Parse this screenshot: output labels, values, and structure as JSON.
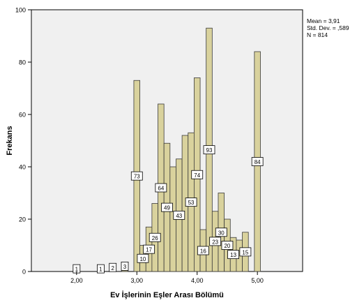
{
  "chart_data": {
    "type": "bar",
    "title": "",
    "xlabel": "Ev İşlerinin Eşler Arası Bölümü",
    "ylabel": "Frekans",
    "xlim": [
      1.25,
      5.75
    ],
    "ylim": [
      0,
      100
    ],
    "x_ticks": [
      2.0,
      3.0,
      4.0,
      5.0
    ],
    "x_tick_labels": [
      "2,00",
      "3,00",
      "4,00",
      "5,00"
    ],
    "y_ticks": [
      0,
      20,
      40,
      60,
      80,
      100
    ],
    "y_tick_labels": [
      "0",
      "20",
      "40",
      "60",
      "80",
      "100"
    ],
    "grid": false,
    "bar_color": "#d9d29d",
    "plot_background": "#f0f0f0",
    "bins": [
      {
        "x": 2.0,
        "value": 1,
        "label": "1"
      },
      {
        "x": 2.4,
        "value": 1,
        "label": "1"
      },
      {
        "x": 2.6,
        "value": 2,
        "label": "2"
      },
      {
        "x": 2.8,
        "value": 3,
        "label": "3"
      },
      {
        "x": 3.0,
        "value": 73,
        "label": "73"
      },
      {
        "x": 3.1,
        "value": 10,
        "label": "10"
      },
      {
        "x": 3.2,
        "value": 17,
        "label": "17"
      },
      {
        "x": 3.3,
        "value": 26,
        "label": "26"
      },
      {
        "x": 3.4,
        "value": 64,
        "label": "64"
      },
      {
        "x": 3.5,
        "value": 49,
        "label": "49"
      },
      {
        "x": 3.6,
        "value": 40,
        "label": ""
      },
      {
        "x": 3.7,
        "value": 43,
        "label": "43"
      },
      {
        "x": 3.8,
        "value": 52,
        "label": ""
      },
      {
        "x": 3.9,
        "value": 53,
        "label": "53"
      },
      {
        "x": 4.0,
        "value": 74,
        "label": "74"
      },
      {
        "x": 4.1,
        "value": 16,
        "label": "16"
      },
      {
        "x": 4.2,
        "value": 93,
        "label": "93"
      },
      {
        "x": 4.3,
        "value": 23,
        "label": "23"
      },
      {
        "x": 4.4,
        "value": 30,
        "label": "30"
      },
      {
        "x": 4.5,
        "value": 20,
        "label": "20"
      },
      {
        "x": 4.6,
        "value": 13,
        "label": "13"
      },
      {
        "x": 4.7,
        "value": 12,
        "label": ""
      },
      {
        "x": 4.8,
        "value": 15,
        "label": "15"
      },
      {
        "x": 5.0,
        "value": 84,
        "label": "84"
      }
    ],
    "stats": {
      "mean": "Mean = 3,91",
      "std_dev": "Std. Dev. = ,589",
      "n": "N = 814"
    }
  }
}
